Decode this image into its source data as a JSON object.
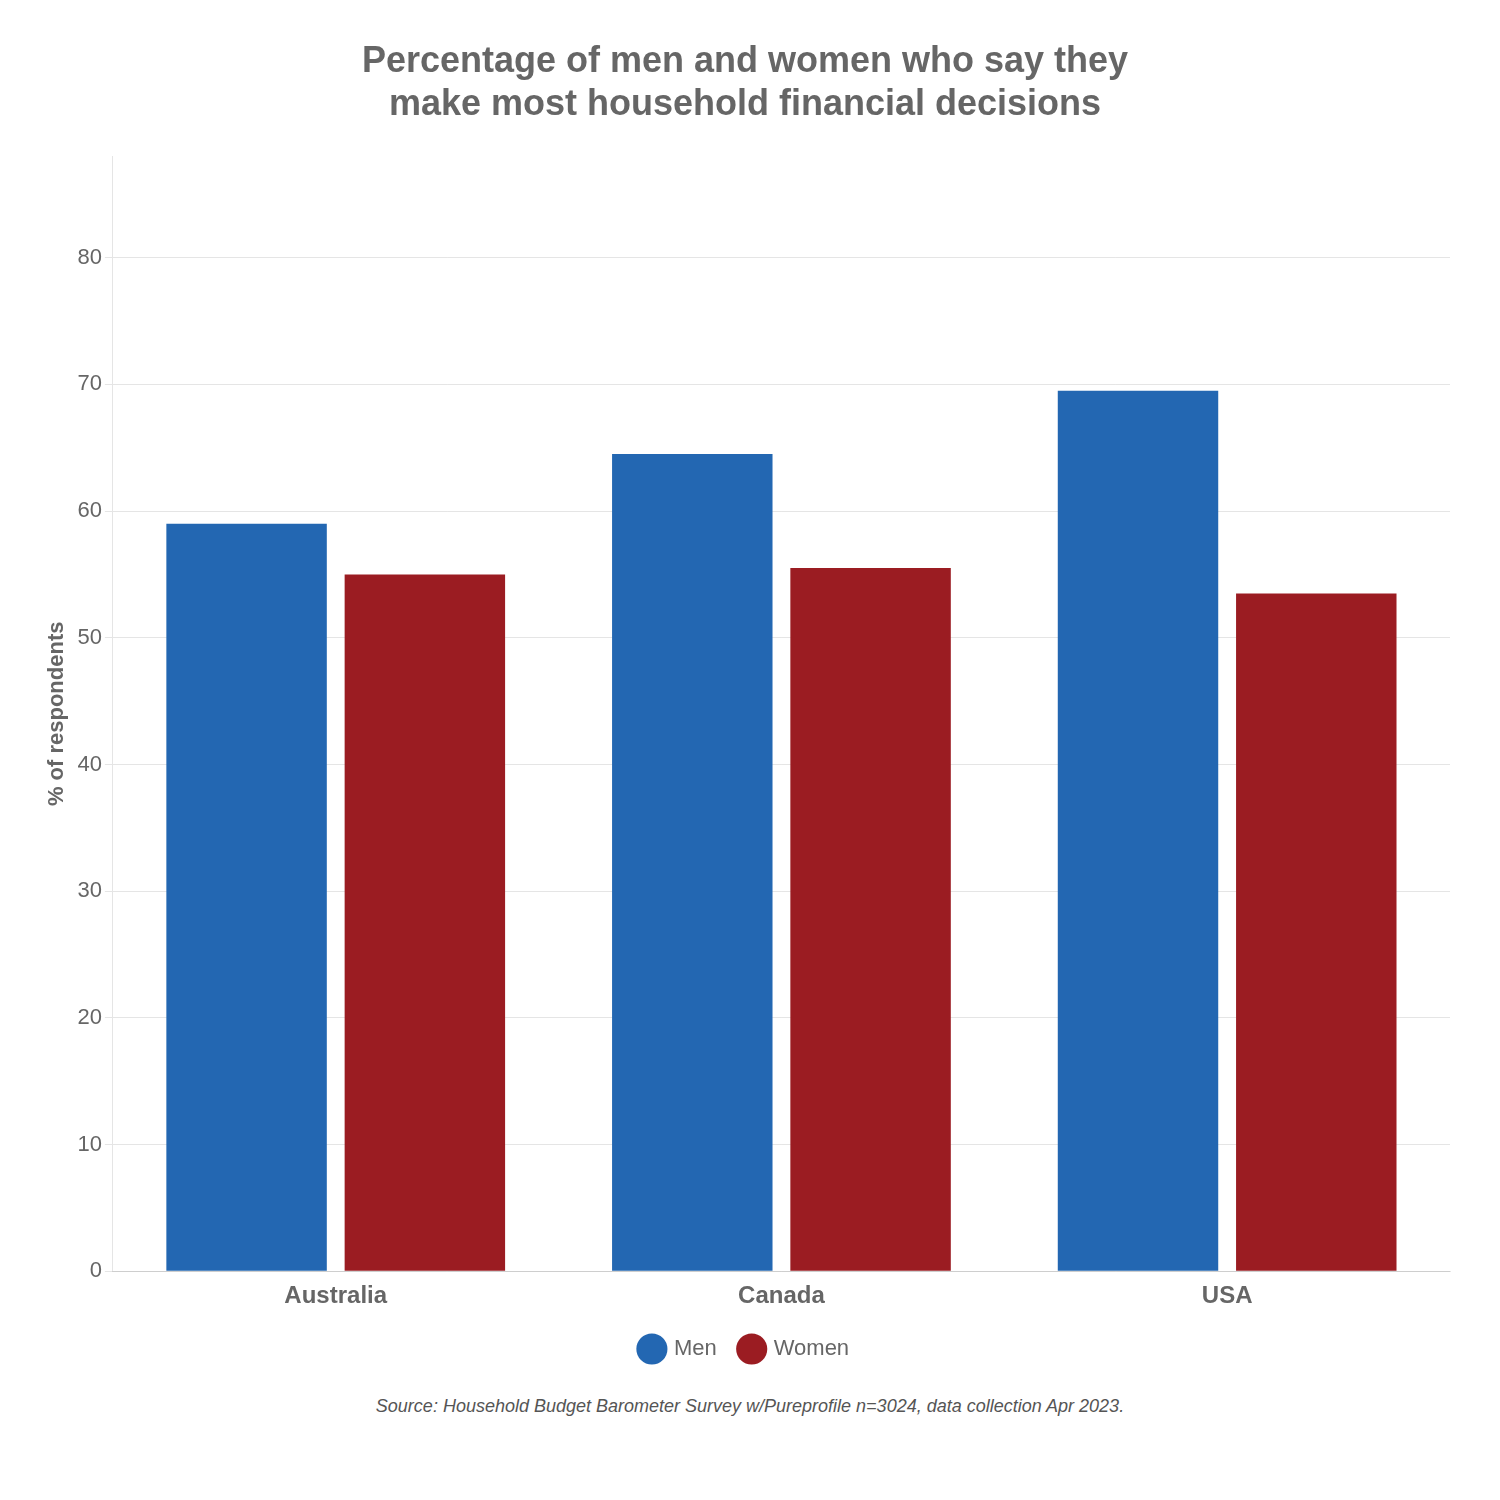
{
  "chart_data": {
    "type": "bar",
    "title": "Percentage of men and women who say they\nmake most household financial decisions",
    "categories": [
      "Australia",
      "Canada",
      "USA"
    ],
    "series": [
      {
        "name": "Men",
        "color": "#2367B2",
        "values": [
          59,
          64.5,
          69.5
        ]
      },
      {
        "name": "Women",
        "color": "#9B1C22",
        "values": [
          55,
          55.5,
          53.5
        ]
      }
    ],
    "ylabel": "% of respondents",
    "ylim": [
      0,
      88
    ],
    "yticks": [
      0,
      10,
      20,
      30,
      40,
      50,
      60,
      70,
      80
    ],
    "grid": true,
    "legend": "bottom",
    "annotations": [
      "Source: Household Budget Barometer Survey w/Pureprofile n=3024, data collection Apr 2023."
    ]
  }
}
